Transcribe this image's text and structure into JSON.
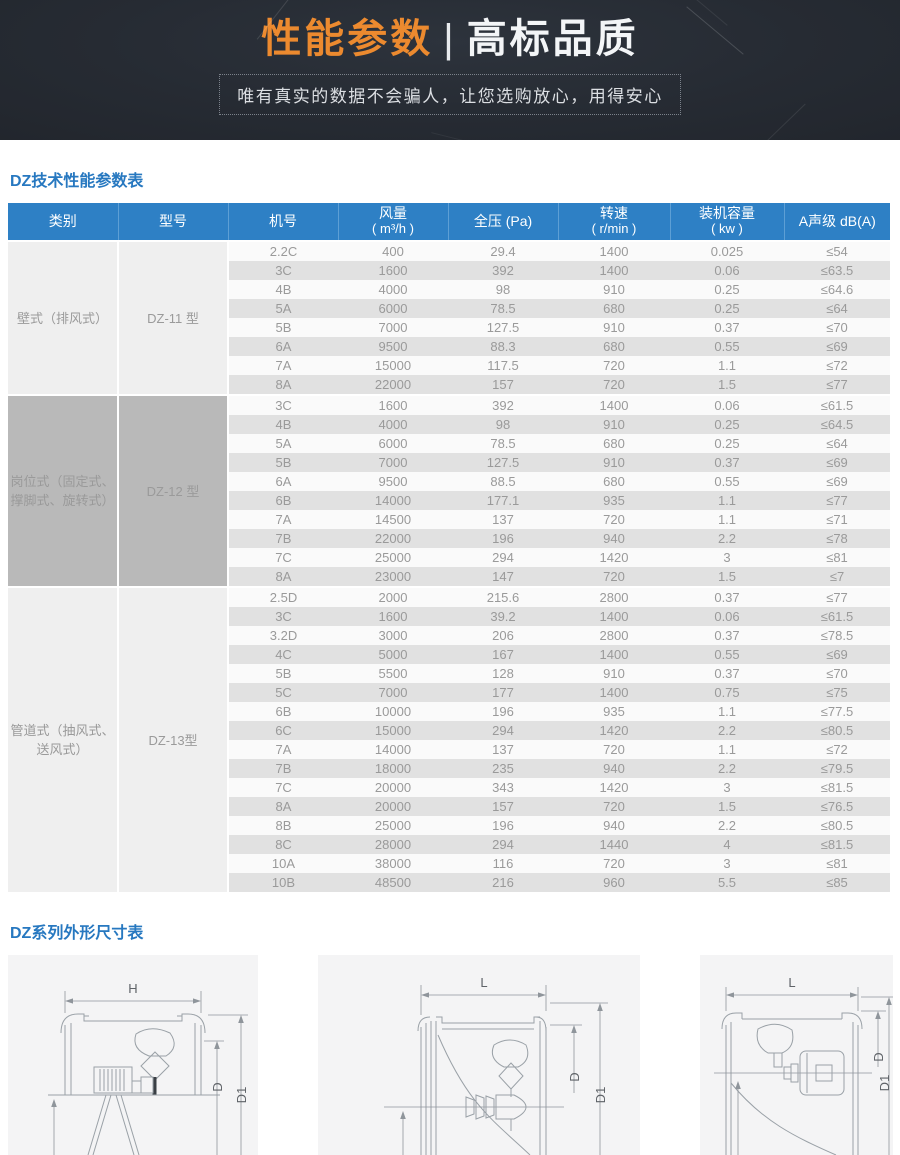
{
  "banner": {
    "title_highlight": "性能参数",
    "title_separator": "|",
    "title_rest": "高标品质",
    "subtitle": "唯有真实的数据不会骗人，让您选购放心，用得安心",
    "accent_color": "#ec8a2f",
    "background_color": "#272c34"
  },
  "spec_table": {
    "title": "DZ技术性能参数表",
    "header_color": "#2e80c5",
    "headers": [
      {
        "line1": "类别",
        "line2": ""
      },
      {
        "line1": "型号",
        "line2": ""
      },
      {
        "line1": "机号",
        "line2": ""
      },
      {
        "line1": "风量",
        "line2": "( m³/h )"
      },
      {
        "line1": "全压 (Pa)",
        "line2": ""
      },
      {
        "line1": "转速",
        "line2": "( r/min )"
      },
      {
        "line1": "装机容量",
        "line2": "( kw )"
      },
      {
        "line1": "A声级 dB(A)",
        "line2": ""
      }
    ],
    "sections": [
      {
        "category": "壁式（排风式）",
        "model": "DZ-11 型",
        "shade": "light",
        "rows": [
          [
            "2.2C",
            "400",
            "29.4",
            "1400",
            "0.025",
            "≤54"
          ],
          [
            "3C",
            "1600",
            "392",
            "1400",
            "0.06",
            "≤63.5"
          ],
          [
            "4B",
            "4000",
            "98",
            "910",
            "0.25",
            "≤64.6"
          ],
          [
            "5A",
            "6000",
            "78.5",
            "680",
            "0.25",
            "≤64"
          ],
          [
            "5B",
            "7000",
            "127.5",
            "910",
            "0.37",
            "≤70"
          ],
          [
            "6A",
            "9500",
            "88.3",
            "680",
            "0.55",
            "≤69"
          ],
          [
            "7A",
            "15000",
            "117.5",
            "720",
            "1.1",
            "≤72"
          ],
          [
            "8A",
            "22000",
            "157",
            "720",
            "1.5",
            "≤77"
          ]
        ]
      },
      {
        "category": "岗位式（固定式、撑脚式、旋转式）",
        "model": "DZ-12 型",
        "shade": "dark",
        "rows": [
          [
            "3C",
            "1600",
            "392",
            "1400",
            "0.06",
            "≤61.5"
          ],
          [
            "4B",
            "4000",
            "98",
            "910",
            "0.25",
            "≤64.5"
          ],
          [
            "5A",
            "6000",
            "78.5",
            "680",
            "0.25",
            "≤64"
          ],
          [
            "5B",
            "7000",
            "127.5",
            "910",
            "0.37",
            "≤69"
          ],
          [
            "6A",
            "9500",
            "88.5",
            "680",
            "0.55",
            "≤69"
          ],
          [
            "6B",
            "14000",
            "177.1",
            "935",
            "1.1",
            "≤77"
          ],
          [
            "7A",
            "14500",
            "137",
            "720",
            "1.1",
            "≤71"
          ],
          [
            "7B",
            "22000",
            "196",
            "940",
            "2.2",
            "≤78"
          ],
          [
            "7C",
            "25000",
            "294",
            "1420",
            "3",
            "≤81"
          ],
          [
            "8A",
            "23000",
            "147",
            "720",
            "1.5",
            "≤7"
          ]
        ]
      },
      {
        "category": "管道式（抽风式、送风式）",
        "model": "DZ-13型",
        "shade": "light",
        "rows": [
          [
            "2.5D",
            "2000",
            "215.6",
            "2800",
            "0.37",
            "≤77"
          ],
          [
            "3C",
            "1600",
            "39.2",
            "1400",
            "0.06",
            "≤61.5"
          ],
          [
            "3.2D",
            "3000",
            "206",
            "2800",
            "0.37",
            "≤78.5"
          ],
          [
            "4C",
            "5000",
            "167",
            "1400",
            "0.55",
            "≤69"
          ],
          [
            "5B",
            "5500",
            "128",
            "910",
            "0.37",
            "≤70"
          ],
          [
            "5C",
            "7000",
            "177",
            "1400",
            "0.75",
            "≤75"
          ],
          [
            "6B",
            "10000",
            "196",
            "935",
            "1.1",
            "≤77.5"
          ],
          [
            "6C",
            "15000",
            "294",
            "1420",
            "2.2",
            "≤80.5"
          ],
          [
            "7A",
            "14000",
            "137",
            "720",
            "1.1",
            "≤72"
          ],
          [
            "7B",
            "18000",
            "235",
            "940",
            "2.2",
            "≤79.5"
          ],
          [
            "7C",
            "20000",
            "343",
            "1420",
            "3",
            "≤81.5"
          ],
          [
            "8A",
            "20000",
            "157",
            "720",
            "1.5",
            "≤76.5"
          ],
          [
            "8B",
            "25000",
            "196",
            "940",
            "2.2",
            "≤80.5"
          ],
          [
            "8C",
            "28000",
            "294",
            "1440",
            "4",
            "≤81.5"
          ],
          [
            "10A",
            "38000",
            "116",
            "720",
            "3",
            "≤81"
          ],
          [
            "10B",
            "48500",
            "216",
            "960",
            "5.5",
            "≤85"
          ]
        ]
      }
    ]
  },
  "drawings": {
    "section_title": "DZ系列外形尺寸表",
    "panels": [
      {
        "top_dim": "H",
        "dim_d": "D",
        "dim_d1": "D1"
      },
      {
        "top_dim": "L",
        "dim_d": "D",
        "dim_d1": "D1"
      },
      {
        "top_dim": "L",
        "dim_d": "D",
        "dim_d1": "D1"
      }
    ]
  }
}
